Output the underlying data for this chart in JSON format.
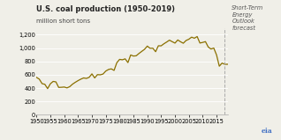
{
  "title": "U.S. coal production (1950-2019)",
  "ylabel": "million short tons",
  "line_color": "#8B7000",
  "background_color": "#F0EFE8",
  "ylim": [
    0,
    1300
  ],
  "yticks": [
    0,
    200,
    400,
    600,
    800,
    1000,
    1200
  ],
  "ytick_labels": [
    "0",
    "200",
    "400",
    "600",
    "800",
    "1,000",
    "1,200"
  ],
  "xlim": [
    1950,
    2019
  ],
  "xticks": [
    1950,
    1955,
    1960,
    1965,
    1970,
    1975,
    1980,
    1985,
    1990,
    1995,
    2000,
    2005,
    2010,
    2015
  ],
  "forecast_start_year": 2018,
  "forecast_label_lines": [
    "Short-Term",
    "Energy",
    "Outlook",
    "forecast"
  ],
  "years": [
    1950,
    1951,
    1952,
    1953,
    1954,
    1955,
    1956,
    1957,
    1958,
    1959,
    1960,
    1961,
    1962,
    1963,
    1964,
    1965,
    1966,
    1967,
    1968,
    1969,
    1970,
    1971,
    1972,
    1973,
    1974,
    1975,
    1976,
    1977,
    1978,
    1979,
    1980,
    1981,
    1982,
    1983,
    1984,
    1985,
    1986,
    1987,
    1988,
    1989,
    1990,
    1991,
    1992,
    1993,
    1994,
    1995,
    1996,
    1997,
    1998,
    1999,
    2000,
    2001,
    2002,
    2003,
    2004,
    2005,
    2006,
    2007,
    2008,
    2009,
    2010,
    2011,
    2012,
    2013,
    2014,
    2015,
    2016,
    2017,
    2018,
    2019
  ],
  "values": [
    560,
    534,
    467,
    457,
    392,
    465,
    500,
    493,
    410,
    412,
    416,
    403,
    422,
    459,
    487,
    512,
    534,
    552,
    545,
    561,
    613,
    552,
    602,
    599,
    610,
    655,
    679,
    688,
    665,
    781,
    830,
    824,
    838,
    782,
    896,
    880,
    884,
    919,
    950,
    981,
    1029,
    996,
    997,
    945,
    1034,
    1033,
    1064,
    1090,
    1118,
    1095,
    1074,
    1121,
    1094,
    1072,
    1113,
    1132,
    1163,
    1147,
    1172,
    1075,
    1084,
    1096,
    1016,
    985,
    1000,
    897,
    728,
    775,
    756,
    757
  ],
  "title_fontsize": 6.0,
  "ylabel_fontsize": 5.0,
  "tick_fontsize": 4.8,
  "forecast_fontsize": 4.8,
  "eia_fontsize": 5.5,
  "grid_color": "#FFFFFF",
  "spine_color": "#AAAAAA",
  "forecast_vline_color": "#AAAAAA",
  "eia_color": "#4472C4"
}
